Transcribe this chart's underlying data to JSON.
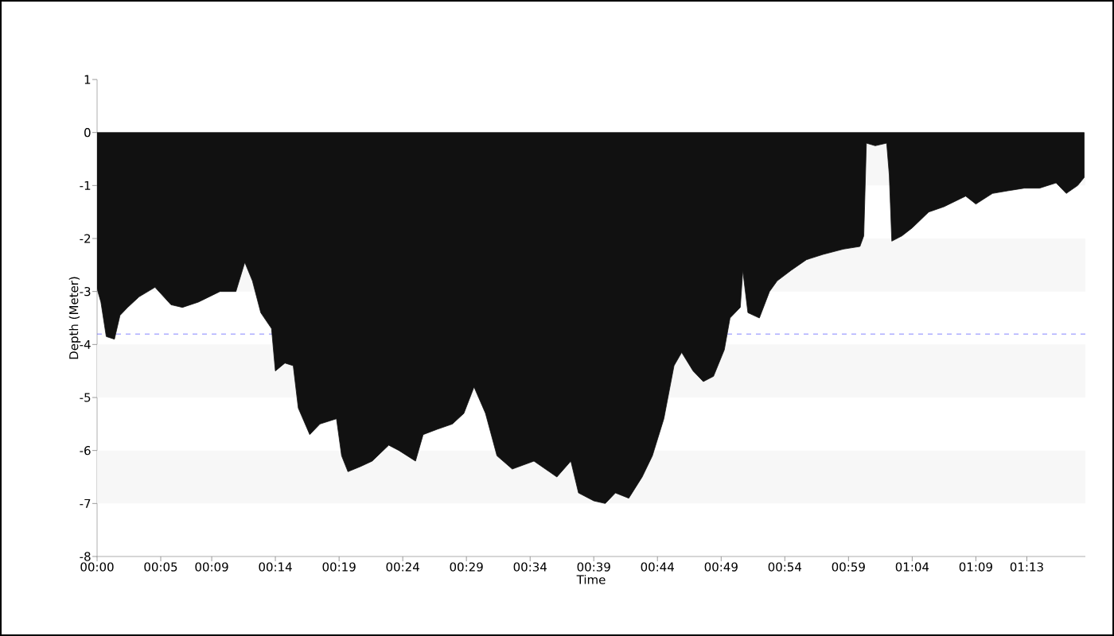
{
  "chart_data": {
    "type": "area",
    "xlabel": "Time",
    "ylabel": "Depth (Meter)",
    "color": "#111111",
    "x": [
      0,
      0.005,
      0.012,
      0.0227,
      0.03,
      0.04,
      0.055,
      0.0758,
      0.0967,
      0.1117,
      0.1325,
      0.1608,
      0.1817,
      0.1933,
      0.2033,
      0.2142,
      0.2283,
      0.2333,
      0.2458,
      0.2567,
      0.2633,
      0.2783,
      0.2917,
      0.3133,
      0.32,
      0.3283,
      0.345,
      0.36,
      0.3817,
      0.395,
      0.4167,
      0.4267,
      0.445,
      0.465,
      0.48,
      0.4933,
      0.5083,
      0.5233,
      0.5433,
      0.5717,
      0.5867,
      0.5917,
      0.6017,
      0.62,
      0.63,
      0.65,
      0.665,
      0.6783,
      0.6958,
      0.7133,
      0.7267,
      0.7417,
      0.755,
      0.765,
      0.78,
      0.7933,
      0.8067,
      0.8208,
      0.8283,
      0.8417,
      0.845,
      0.8517,
      0.8667,
      0.88,
      0.89,
      0.9083,
      0.9283,
      0.95,
      0.9767,
      0.9983,
      1.0033,
      1.0067,
      1.0183,
      1.0333,
      1.0367,
      1.04,
      1.0533,
      1.0667,
      1.0883,
      1.1083,
      1.1367,
      1.15,
      1.1717,
      1.1917,
      1.2133,
      1.2333,
      1.255,
      1.2683,
      1.2833,
      1.2917
    ],
    "values": [
      -2.95,
      -3.2,
      -3.85,
      -3.9,
      -3.45,
      -3.3,
      -3.1,
      -2.92,
      -3.25,
      -3.3,
      -3.2,
      -3.0,
      -3.0,
      -2.45,
      -2.8,
      -3.4,
      -3.7,
      -4.5,
      -4.35,
      -4.4,
      -5.2,
      -5.7,
      -5.5,
      -5.4,
      -6.1,
      -6.4,
      -6.3,
      -6.2,
      -5.9,
      -6.0,
      -6.2,
      -5.7,
      -5.6,
      -5.5,
      -5.3,
      -4.8,
      -5.3,
      -6.1,
      -6.35,
      -6.2,
      -6.35,
      -6.4,
      -6.5,
      -6.2,
      -6.8,
      -6.95,
      -7.0,
      -6.8,
      -6.9,
      -6.5,
      -6.1,
      -5.4,
      -4.4,
      -4.15,
      -4.5,
      -4.7,
      -4.6,
      -4.1,
      -3.5,
      -3.3,
      -2.6,
      -3.4,
      -3.5,
      -3.0,
      -2.8,
      -2.6,
      -2.4,
      -2.3,
      -2.2,
      -2.15,
      -1.95,
      -0.2,
      -0.25,
      -0.2,
      -0.8,
      -2.05,
      -1.95,
      -1.8,
      -1.5,
      -1.4,
      -1.2,
      -1.35,
      -1.15,
      -1.1,
      -1.05,
      -1.05,
      -0.95,
      -1.15,
      -1.0,
      -0.85
    ],
    "xlim": [
      0,
      1.2933
    ],
    "xticks": [
      {
        "value": 0,
        "label": "00:00"
      },
      {
        "value": 0.0833,
        "label": "00:05"
      },
      {
        "value": 0.15,
        "label": "00:09"
      },
      {
        "value": 0.2333,
        "label": "00:14"
      },
      {
        "value": 0.3167,
        "label": "00:19"
      },
      {
        "value": 0.4,
        "label": "00:24"
      },
      {
        "value": 0.4833,
        "label": "00:29"
      },
      {
        "value": 0.5667,
        "label": "00:34"
      },
      {
        "value": 0.65,
        "label": "00:39"
      },
      {
        "value": 0.7333,
        "label": "00:44"
      },
      {
        "value": 0.8167,
        "label": "00:49"
      },
      {
        "value": 0.9,
        "label": "00:54"
      },
      {
        "value": 0.9833,
        "label": "00:59"
      },
      {
        "value": 1.0667,
        "label": "01:04"
      },
      {
        "value": 1.15,
        "label": "01:09"
      },
      {
        "value": 1.2167,
        "label": "01:13"
      }
    ],
    "ylim": [
      -8,
      1
    ],
    "yticks": [
      -8,
      -7,
      -6,
      -5,
      -4,
      -3,
      -2,
      -1,
      0,
      1
    ],
    "ref_lines": [
      {
        "axis": "y",
        "value": -3.8,
        "color": "#3333ff",
        "line_style": "dashed"
      }
    ],
    "bands": [
      {
        "axis": "y",
        "from": -1,
        "to": 0,
        "color": "#f7f7f7"
      },
      {
        "axis": "y",
        "from": -3,
        "to": -2,
        "color": "#f7f7f7"
      },
      {
        "axis": "y",
        "from": -5,
        "to": -4,
        "color": "#f7f7f7"
      },
      {
        "axis": "y",
        "from": -7,
        "to": -6,
        "color": "#f7f7f7"
      }
    ]
  }
}
